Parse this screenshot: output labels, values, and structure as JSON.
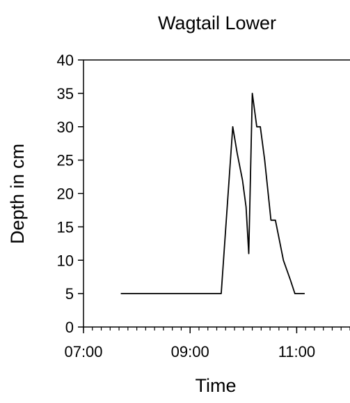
{
  "chart_data": {
    "type": "line",
    "title": "Wagtail Lower",
    "xlabel": "Time",
    "ylabel": "Depth in cm",
    "xlim": [
      "07:00",
      "12:00"
    ],
    "ylim": [
      0,
      40
    ],
    "x_ticks": [
      "07:00",
      "09:00",
      "11:00"
    ],
    "y_ticks": [
      0,
      5,
      10,
      15,
      20,
      25,
      30,
      35,
      40
    ],
    "grid": false,
    "legend": "none",
    "series": [
      {
        "color": "#000000",
        "points": [
          {
            "x": "07:42",
            "y": 5
          },
          {
            "x": "09:35",
            "y": 5
          },
          {
            "x": "09:48",
            "y": 30
          },
          {
            "x": "09:53",
            "y": 26
          },
          {
            "x": "09:59",
            "y": 22
          },
          {
            "x": "10:03",
            "y": 18
          },
          {
            "x": "10:06",
            "y": 11
          },
          {
            "x": "10:10",
            "y": 35
          },
          {
            "x": "10:15",
            "y": 30
          },
          {
            "x": "10:19",
            "y": 30
          },
          {
            "x": "10:24",
            "y": 25
          },
          {
            "x": "10:31",
            "y": 16
          },
          {
            "x": "10:36",
            "y": 16
          },
          {
            "x": "10:45",
            "y": 10
          },
          {
            "x": "10:53",
            "y": 7
          },
          {
            "x": "10:58",
            "y": 5
          },
          {
            "x": "11:09",
            "y": 5
          }
        ]
      }
    ]
  }
}
